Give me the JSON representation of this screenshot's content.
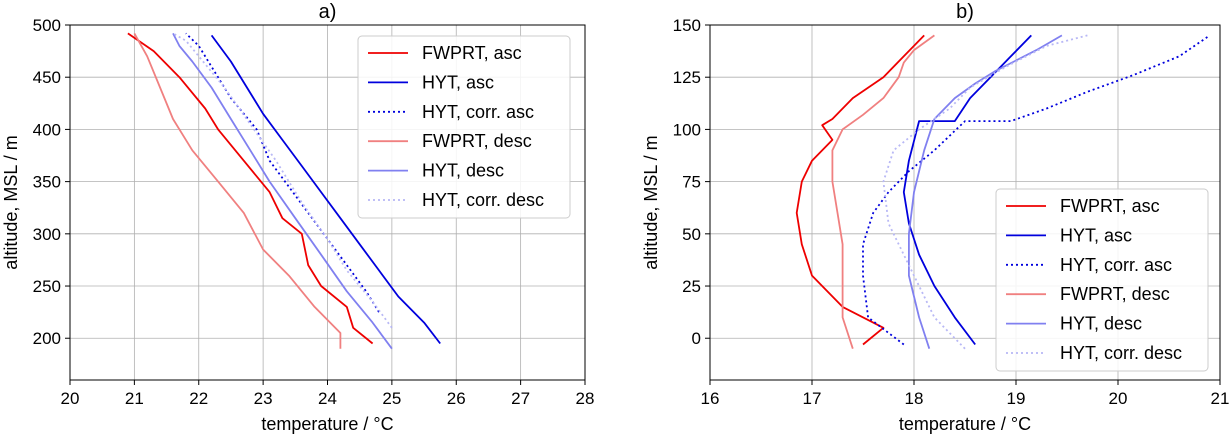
{
  "chart_data": [
    {
      "type": "line",
      "title": "a)",
      "xlabel": "temperature / °C",
      "ylabel": "altitude, MSL / m",
      "xlim": [
        20,
        28
      ],
      "ylim": [
        160,
        500
      ],
      "xticks": [
        "20",
        "21",
        "22",
        "23",
        "24",
        "25",
        "26",
        "27",
        "28"
      ],
      "yticks": [
        "200",
        "250",
        "300",
        "350",
        "400",
        "450",
        "500"
      ],
      "grid": true,
      "legend_position": "top-right",
      "series": [
        {
          "name": "FWPRT, asc",
          "color": "#ee0000",
          "style": "solid",
          "x": [
            24.7,
            24.4,
            24.3,
            23.9,
            23.7,
            23.6,
            23.3,
            23.1,
            22.7,
            22.3,
            22.1,
            21.7,
            21.3,
            20.9
          ],
          "y": [
            195,
            210,
            230,
            250,
            270,
            300,
            315,
            340,
            370,
            400,
            420,
            450,
            475,
            492
          ]
        },
        {
          "name": "HYT, asc",
          "color": "#0000dd",
          "style": "solid",
          "x": [
            25.75,
            25.5,
            25.1,
            24.8,
            24.5,
            24.2,
            23.9,
            23.6,
            23.3,
            23.0,
            22.75,
            22.5,
            22.2
          ],
          "y": [
            195,
            215,
            240,
            265,
            290,
            315,
            340,
            365,
            390,
            415,
            440,
            465,
            490
          ]
        },
        {
          "name": "HYT, corr. asc",
          "color": "#0000dd",
          "style": "dotted",
          "x": [
            24.8,
            24.6,
            24.3,
            24.0,
            23.7,
            23.4,
            23.1,
            22.9,
            22.5,
            22.2,
            22.0,
            21.8
          ],
          "y": [
            225,
            245,
            270,
            295,
            320,
            345,
            370,
            400,
            430,
            460,
            480,
            492
          ]
        },
        {
          "name": "FWPRT, desc",
          "color": "#f08080",
          "style": "solid",
          "x": [
            24.2,
            24.2,
            23.8,
            23.4,
            23.0,
            22.7,
            22.3,
            21.9,
            21.6,
            21.4,
            21.2,
            21.0
          ],
          "y": [
            190,
            205,
            230,
            260,
            285,
            320,
            350,
            380,
            410,
            440,
            470,
            492
          ]
        },
        {
          "name": "HYT, desc",
          "color": "#8080f0",
          "style": "solid",
          "x": [
            25.0,
            24.7,
            24.3,
            23.9,
            23.5,
            23.1,
            22.8,
            22.5,
            22.2,
            21.9,
            21.7,
            21.6
          ],
          "y": [
            190,
            215,
            245,
            280,
            315,
            350,
            380,
            410,
            440,
            465,
            480,
            492
          ]
        },
        {
          "name": "HYT, corr. desc",
          "color": "#b8b8f5",
          "style": "dotted",
          "x": [
            25.0,
            24.7,
            24.3,
            24.0,
            23.6,
            23.2,
            22.8,
            22.4,
            22.0,
            21.8,
            21.6
          ],
          "y": [
            210,
            235,
            265,
            295,
            330,
            370,
            405,
            440,
            470,
            485,
            492
          ]
        }
      ]
    },
    {
      "type": "line",
      "title": "b)",
      "xlabel": "temperature / °C",
      "ylabel": "altitude, MSL / m",
      "xlim": [
        16,
        21
      ],
      "ylim": [
        -20,
        150
      ],
      "xticks": [
        "16",
        "17",
        "18",
        "19",
        "20",
        "21"
      ],
      "yticks": [
        "0",
        "25",
        "50",
        "75",
        "100",
        "125",
        "150"
      ],
      "grid": true,
      "legend_position": "lower-right",
      "series": [
        {
          "name": "FWPRT, asc",
          "color": "#ee0000",
          "style": "solid",
          "x": [
            17.5,
            17.7,
            17.3,
            17.0,
            16.9,
            16.85,
            16.9,
            17.0,
            17.2,
            17.1,
            17.2,
            17.4,
            17.7,
            17.9,
            18.1
          ],
          "y": [
            -3,
            5,
            15,
            30,
            45,
            60,
            75,
            85,
            95,
            102,
            105,
            115,
            125,
            135,
            145
          ]
        },
        {
          "name": "HYT, asc",
          "color": "#0000dd",
          "style": "solid",
          "x": [
            18.6,
            18.4,
            18.2,
            18.05,
            17.95,
            17.9,
            17.95,
            18.05,
            18.4,
            18.55,
            18.75,
            18.95,
            19.15
          ],
          "y": [
            -3,
            10,
            25,
            40,
            55,
            70,
            85,
            104,
            104,
            115,
            125,
            135,
            145
          ]
        },
        {
          "name": "HYT, corr. asc",
          "color": "#0000dd",
          "style": "dotted",
          "x": [
            17.9,
            17.55,
            17.5,
            17.5,
            17.6,
            17.75,
            17.95,
            18.2,
            18.5,
            18.95,
            19.3,
            19.7,
            20.15,
            20.6,
            20.9
          ],
          "y": [
            -3,
            10,
            30,
            45,
            60,
            70,
            80,
            90,
            104,
            104,
            110,
            118,
            126,
            135,
            145
          ]
        },
        {
          "name": "FWPRT, desc",
          "color": "#f08080",
          "style": "solid",
          "x": [
            17.4,
            17.3,
            17.3,
            17.3,
            17.25,
            17.2,
            17.2,
            17.3,
            17.5,
            17.7,
            17.85,
            17.9,
            18.0,
            18.2
          ],
          "y": [
            -5,
            10,
            25,
            45,
            60,
            75,
            90,
            100,
            107,
            115,
            125,
            132,
            138,
            145
          ]
        },
        {
          "name": "HYT, desc",
          "color": "#8080f0",
          "style": "solid",
          "x": [
            18.15,
            18.05,
            17.95,
            17.95,
            18.0,
            18.1,
            18.2,
            18.4,
            18.6,
            18.8,
            19.0,
            19.2,
            19.45
          ],
          "y": [
            -5,
            10,
            30,
            50,
            70,
            90,
            105,
            115,
            122,
            128,
            133,
            138,
            145
          ]
        },
        {
          "name": "HYT, corr. desc",
          "color": "#b8b8f5",
          "style": "dotted",
          "x": [
            18.5,
            18.2,
            18.0,
            17.75,
            17.7,
            17.8,
            18.05,
            18.35,
            18.55,
            18.9,
            19.3,
            19.7
          ],
          "y": [
            -5,
            10,
            30,
            55,
            75,
            90,
            100,
            110,
            120,
            130,
            140,
            145
          ]
        }
      ]
    }
  ]
}
